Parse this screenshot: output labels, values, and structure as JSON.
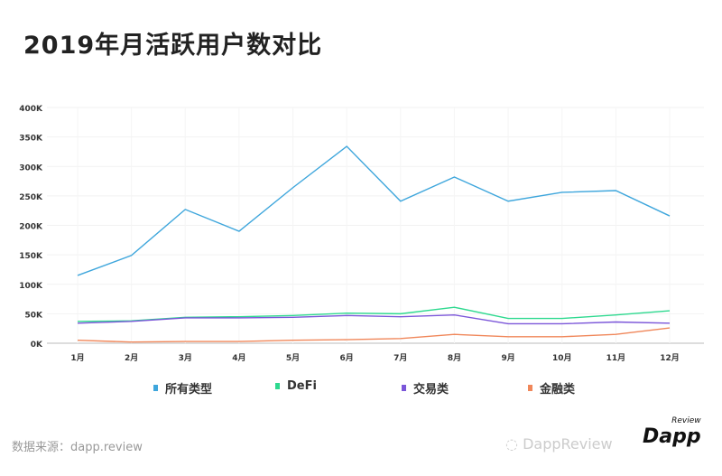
{
  "chart_data": {
    "type": "line",
    "title": "2019年月活跃用户数对比",
    "categories": [
      "1月",
      "2月",
      "3月",
      "4月",
      "5月",
      "6月",
      "7月",
      "8月",
      "9月",
      "10月",
      "11月",
      "12月"
    ],
    "yticks": [
      "0K",
      "50K",
      "100K",
      "150K",
      "200K",
      "250K",
      "300K",
      "350K",
      "400K"
    ],
    "ylim": [
      0,
      400000
    ],
    "grid": true,
    "legend_position": "bottom",
    "series": [
      {
        "name": "所有类型",
        "color": "#3ea6dc",
        "values": [
          115000,
          149000,
          227000,
          190000,
          264000,
          334000,
          241000,
          282000,
          241000,
          256000,
          259000,
          216000
        ]
      },
      {
        "name": "DeFi",
        "color": "#2ed98f",
        "values": [
          37000,
          38000,
          44000,
          45000,
          47000,
          51000,
          50000,
          61000,
          42000,
          42000,
          48000,
          55000
        ]
      },
      {
        "name": "交易类",
        "color": "#7b56d9",
        "values": [
          34000,
          37000,
          43000,
          43000,
          44000,
          47000,
          45000,
          48000,
          33000,
          33000,
          36000,
          34000
        ]
      },
      {
        "name": "金融类",
        "color": "#f0875a",
        "values": [
          5000,
          2000,
          3000,
          3000,
          5000,
          6000,
          8000,
          15000,
          11000,
          11000,
          15000,
          26000
        ]
      }
    ]
  },
  "footer": {
    "source": "数据来源：dapp.review",
    "watermark": "DappReview",
    "logo": "Dapp",
    "logo_sub": "Review"
  }
}
